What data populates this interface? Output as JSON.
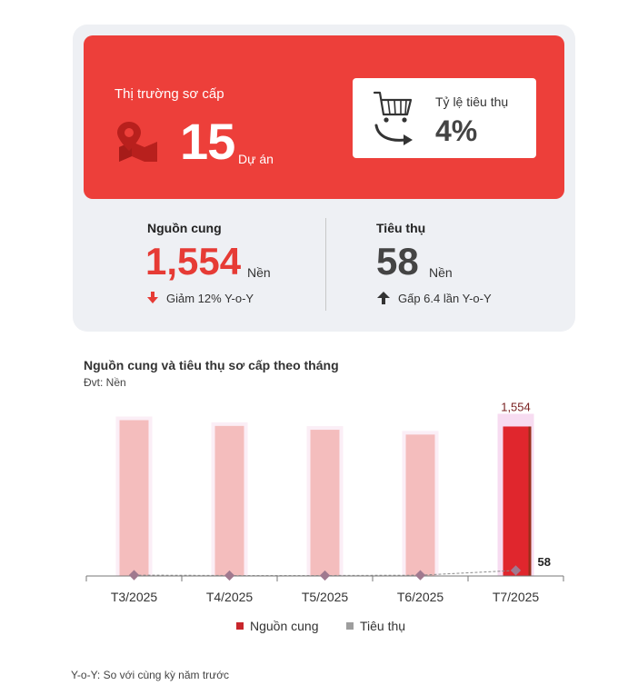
{
  "summary": {
    "market_title": "Thị trường sơ cấp",
    "project_count": "15",
    "project_unit": "Dự án",
    "ratio_label": "Tỷ lệ tiêu thụ",
    "ratio_value": "4%",
    "accent_color": "#ed3f3a"
  },
  "supply": {
    "label": "Nguồn cung",
    "value": "1,554",
    "unit": "Nền",
    "change": "Giảm 12% Y-o-Y",
    "color": "#e63b35"
  },
  "absorption": {
    "label": "Tiêu thụ",
    "value": "58",
    "unit": "Nền",
    "change": "Gấp 6.4 lần Y-o-Y",
    "color": "#444444"
  },
  "chart": {
    "title": "Nguồn cung và tiêu thụ sơ cấp theo tháng",
    "unit": "Đvt: Nền"
  },
  "chart_data": {
    "type": "bar",
    "title": "Nguồn cung và tiêu thụ sơ cấp theo tháng",
    "unit": "Đvt: Nền",
    "categories": [
      "T3/2025",
      "T4/2025",
      "T5/2025",
      "T6/2025",
      "T7/2025"
    ],
    "series": [
      {
        "name": "Nguồn cung",
        "type": "bar",
        "values": [
          1620,
          1560,
          1520,
          1470,
          1554
        ],
        "color": "#f4bdbd",
        "highlight_color": "#e0262d"
      },
      {
        "name": "Tiêu thụ",
        "type": "line",
        "values": [
          9,
          5,
          5,
          8,
          58
        ],
        "color": "#a0798f"
      }
    ],
    "data_labels": {
      "T7/2025": {
        "Nguồn cung": "1,554",
        "Tiêu thụ": "58"
      }
    },
    "ylim": [
      0,
      1700
    ],
    "legend": "bottom",
    "grid": false
  },
  "legend": {
    "supply": "Nguồn cung",
    "absorption": "Tiêu thụ"
  },
  "footnote": "Y-o-Y: So với cùng kỳ năm trước"
}
